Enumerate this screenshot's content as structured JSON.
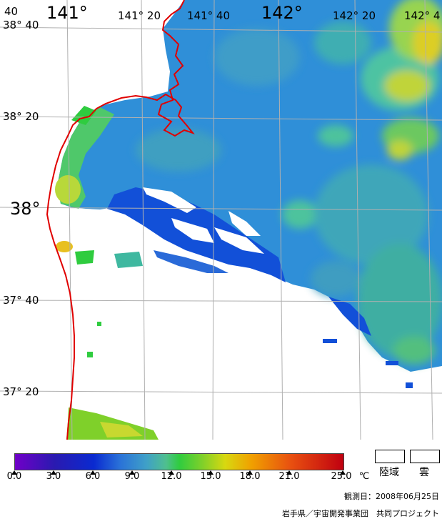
{
  "map": {
    "lon_labels": [
      "141°",
      "141° 20",
      "141° 40",
      "142°",
      "142° 20",
      "142° 4",
      "40"
    ],
    "lat_labels": [
      "38° 40",
      "38° 20",
      "38°",
      "37° 40",
      "37° 20"
    ],
    "coastline_color": "#e00000",
    "grid_color": "#b0b0b0"
  },
  "colorbar": {
    "tick_labels": [
      "0.0",
      "3.0",
      "6.0",
      "9.0",
      "12.0",
      "15.0",
      "18.0",
      "21.0",
      "25.0"
    ],
    "unit": "℃"
  },
  "legend": {
    "land_label": "陸域",
    "cloud_label": "雲"
  },
  "footer": {
    "date": "観測日：2008年06月25日",
    "credit": "岩手県／宇宙開発事業団　共同プロジェクト"
  }
}
